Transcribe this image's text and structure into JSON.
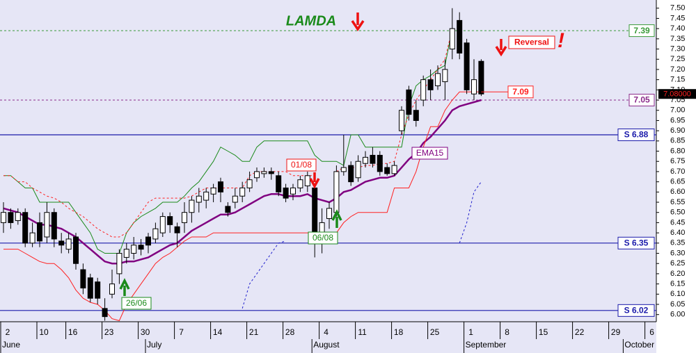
{
  "chart_data": {
    "type": "candlestick",
    "title": "LAMDA",
    "annotations": [
      "Reversal",
      "!",
      "01/08",
      "06/08",
      "26/06"
    ],
    "categories": [
      "2",
      null,
      null,
      null,
      null,
      "10",
      null,
      null,
      null,
      "16",
      null,
      null,
      null,
      null,
      "23",
      null,
      null,
      null,
      null,
      "30",
      null,
      null,
      null,
      null,
      "7",
      null,
      null,
      null,
      null,
      "14",
      null,
      null,
      null,
      null,
      "21",
      null,
      null,
      null,
      null,
      "28",
      null,
      null,
      null,
      null,
      "4",
      null,
      null,
      null,
      null,
      "11",
      null,
      null,
      null,
      null,
      "18",
      null,
      null,
      null,
      null,
      "25",
      null,
      null,
      null,
      null,
      "1",
      null,
      null,
      null,
      null,
      "8",
      null,
      null,
      null,
      null,
      "15",
      null,
      null,
      null,
      null,
      "22",
      null,
      null,
      null,
      null,
      "29",
      null,
      null,
      null,
      null,
      "6"
    ],
    "months": [
      "June",
      null,
      null,
      null,
      null,
      null,
      null,
      null,
      null,
      null,
      null,
      null,
      null,
      null,
      null,
      null,
      null,
      null,
      null,
      null,
      "July",
      null,
      null,
      null,
      null,
      null,
      null,
      null,
      null,
      null,
      null,
      null,
      null,
      null,
      null,
      null,
      null,
      null,
      null,
      null,
      null,
      null,
      null,
      "August",
      null,
      null,
      null,
      null,
      null,
      null,
      null,
      null,
      null,
      null,
      null,
      null,
      null,
      null,
      null,
      null,
      null,
      null,
      null,
      null,
      "September",
      null,
      null,
      null,
      null,
      null,
      null,
      null,
      null,
      null,
      null,
      null,
      null,
      null,
      null,
      null,
      null,
      null,
      null,
      null,
      null,
      null,
      "October",
      null,
      null,
      null
    ],
    "open": [
      6.45,
      6.5,
      6.46,
      6.5,
      6.35,
      6.45,
      6.38,
      6.5,
      6.36,
      6.32,
      6.38,
      6.22,
      6.18,
      6.16,
      6.03,
      6.1,
      6.2,
      6.28,
      6.3,
      6.34,
      6.38,
      6.37,
      6.4,
      6.48,
      6.43,
      6.45,
      6.5,
      6.55,
      6.56,
      6.59,
      6.65,
      6.53,
      6.55,
      6.58,
      6.62,
      6.67,
      6.69,
      6.7,
      6.68,
      6.62,
      6.59,
      6.62,
      6.63,
      6.62,
      6.4,
      6.47,
      6.5,
      6.7,
      6.73,
      6.67,
      6.74,
      6.78,
      6.78,
      6.72,
      6.69,
      6.9,
      7.1,
      7.0,
      7.05,
      7.15,
      7.12,
      7.14,
      7.3,
      7.44,
      7.33,
      7.08,
      7.24,
      null,
      null,
      null,
      null,
      null,
      null,
      null,
      null,
      null,
      null,
      null,
      null,
      null,
      null,
      null,
      null,
      null,
      null,
      null,
      null,
      null,
      null,
      null
    ],
    "high": [
      6.55,
      6.52,
      6.52,
      6.52,
      6.45,
      6.5,
      6.55,
      6.52,
      6.4,
      6.4,
      6.4,
      6.25,
      6.2,
      6.18,
      6.08,
      6.22,
      6.32,
      6.35,
      6.38,
      6.37,
      6.4,
      6.45,
      6.5,
      6.5,
      6.45,
      6.55,
      6.58,
      6.62,
      6.62,
      6.64,
      6.67,
      6.55,
      6.62,
      6.65,
      6.7,
      6.72,
      6.72,
      6.72,
      6.7,
      6.64,
      6.64,
      6.68,
      6.7,
      6.64,
      6.52,
      6.55,
      6.73,
      6.88,
      6.75,
      6.78,
      6.8,
      6.82,
      6.8,
      6.74,
      6.75,
      7.02,
      7.12,
      7.05,
      7.17,
      7.2,
      7.22,
      7.25,
      7.5,
      7.48,
      7.35,
      7.25,
      7.25,
      null,
      null,
      null,
      null,
      null,
      null,
      null,
      null,
      null,
      null,
      null,
      null,
      null,
      null,
      null,
      null,
      null,
      null,
      null,
      null,
      null,
      null,
      null
    ],
    "low": [
      6.4,
      6.42,
      6.44,
      6.33,
      6.33,
      6.33,
      6.35,
      6.33,
      6.3,
      6.3,
      6.22,
      6.1,
      6.06,
      6.05,
      5.97,
      6.08,
      6.15,
      6.25,
      6.27,
      6.29,
      6.3,
      6.35,
      6.38,
      6.4,
      6.33,
      6.4,
      6.45,
      6.5,
      6.52,
      6.55,
      6.55,
      6.48,
      6.52,
      6.55,
      6.6,
      6.65,
      6.67,
      6.66,
      6.58,
      6.55,
      6.56,
      6.6,
      6.6,
      6.28,
      6.3,
      6.42,
      6.48,
      6.68,
      6.63,
      6.65,
      6.72,
      6.72,
      6.68,
      6.68,
      6.68,
      6.88,
      6.95,
      6.92,
      7.02,
      7.05,
      7.1,
      7.05,
      7.25,
      7.25,
      7.08,
      7.05,
      7.07,
      null,
      null,
      null,
      null,
      null,
      null,
      null,
      null,
      null,
      null,
      null,
      null,
      null,
      null,
      null,
      null,
      null,
      null,
      null,
      null,
      null,
      null,
      null
    ],
    "close": [
      6.5,
      6.45,
      6.5,
      6.35,
      6.4,
      6.36,
      6.5,
      6.37,
      6.34,
      6.37,
      6.25,
      6.13,
      6.08,
      6.08,
      5.99,
      6.15,
      6.3,
      6.32,
      6.34,
      6.32,
      6.34,
      6.42,
      6.48,
      6.44,
      6.4,
      6.5,
      6.56,
      6.58,
      6.6,
      6.62,
      6.6,
      6.5,
      6.58,
      6.62,
      6.66,
      6.7,
      6.7,
      6.69,
      6.6,
      6.57,
      6.62,
      6.66,
      6.68,
      6.4,
      6.45,
      6.52,
      6.7,
      6.72,
      6.65,
      6.75,
      6.77,
      6.74,
      6.7,
      6.69,
      6.73,
      7.0,
      6.98,
      6.95,
      7.15,
      7.1,
      7.18,
      7.2,
      7.4,
      7.28,
      7.1,
      7.15,
      7.08,
      null,
      null,
      null,
      null,
      null,
      null,
      null,
      null,
      null,
      null,
      null,
      null,
      null,
      null,
      null,
      null,
      null,
      null,
      null,
      null,
      null,
      null,
      null
    ],
    "up_color": "#ffffff",
    "down_color": "#000000",
    "lines": [
      {
        "name": "EMA15",
        "color": "#800080",
        "width": 2.5,
        "dashed": false,
        "values": [
          6.52,
          6.51,
          6.5,
          6.48,
          6.46,
          6.44,
          6.44,
          6.43,
          6.42,
          6.4,
          6.38,
          6.35,
          6.32,
          6.29,
          6.26,
          6.25,
          6.25,
          6.26,
          6.26,
          6.27,
          6.28,
          6.3,
          6.32,
          6.34,
          6.35,
          6.38,
          6.41,
          6.43,
          6.45,
          6.47,
          6.49,
          6.49,
          6.5,
          6.52,
          6.54,
          6.56,
          6.58,
          6.59,
          6.59,
          6.58,
          6.58,
          6.58,
          6.59,
          6.57,
          6.56,
          6.55,
          6.57,
          6.6,
          6.61,
          6.63,
          6.65,
          6.66,
          6.67,
          6.67,
          6.68,
          6.72,
          6.76,
          6.79,
          6.84,
          6.87,
          6.91,
          6.95,
          7.0,
          7.02,
          7.03,
          7.04,
          7.05,
          null,
          null,
          null,
          null,
          null,
          null,
          null,
          null,
          null,
          null,
          null,
          null,
          null,
          null,
          null,
          null,
          null,
          null,
          null,
          null,
          null,
          null,
          null
        ]
      },
      {
        "color": "#1a8a1a",
        "width": 1,
        "dashed": false,
        "values": [
          6.68,
          6.68,
          6.65,
          6.62,
          6.62,
          6.55,
          6.55,
          6.55,
          6.55,
          6.55,
          6.5,
          6.45,
          6.4,
          6.32,
          6.3,
          6.3,
          6.3,
          6.4,
          6.45,
          6.48,
          6.5,
          6.52,
          6.55,
          6.55,
          6.55,
          6.58,
          6.62,
          6.65,
          6.7,
          6.75,
          6.82,
          6.8,
          6.78,
          6.75,
          6.75,
          6.82,
          6.85,
          6.85,
          6.85,
          6.85,
          6.85,
          6.85,
          6.85,
          6.78,
          6.75,
          6.75,
          6.75,
          6.73,
          6.88,
          6.88,
          6.82,
          6.82,
          6.82,
          6.82,
          6.82,
          6.82,
          7.02,
          7.12,
          7.15,
          7.17,
          7.2,
          7.22,
          7.4,
          null,
          null,
          null,
          null,
          null,
          null,
          null,
          null,
          null,
          null,
          null,
          null,
          null,
          null,
          null,
          null,
          null,
          null,
          null,
          null,
          null,
          null,
          null,
          null,
          null,
          null,
          null
        ]
      },
      {
        "color": "#ff2020",
        "width": 1,
        "dashed": false,
        "values": [
          6.32,
          6.32,
          6.32,
          6.3,
          6.28,
          6.26,
          6.25,
          6.25,
          6.22,
          6.18,
          6.12,
          6.08,
          6.06,
          6.05,
          6.02,
          5.98,
          5.97,
          6.05,
          6.1,
          6.15,
          6.2,
          6.25,
          6.28,
          6.3,
          6.33,
          6.36,
          6.38,
          6.38,
          6.38,
          6.4,
          6.4,
          6.4,
          6.4,
          6.4,
          6.4,
          6.4,
          6.4,
          6.4,
          6.4,
          6.4,
          6.4,
          6.4,
          6.4,
          6.4,
          6.4,
          6.4,
          6.4,
          6.45,
          6.48,
          6.5,
          6.5,
          6.5,
          6.5,
          6.5,
          6.62,
          6.62,
          6.62,
          6.7,
          6.82,
          6.92,
          6.92,
          7.0,
          7.05,
          7.09,
          7.09,
          7.09,
          7.09,
          null,
          null,
          null,
          null,
          null,
          null,
          null,
          null,
          null,
          null,
          null,
          null,
          null,
          null,
          null,
          null,
          null,
          null,
          null,
          null,
          null,
          null,
          null
        ]
      },
      {
        "color": "#ff2020",
        "width": 1,
        "dashed": true,
        "values": [
          6.68,
          6.68,
          6.65,
          6.65,
          6.62,
          6.6,
          6.58,
          6.57,
          6.55,
          6.52,
          6.5,
          6.48,
          6.45,
          6.42,
          6.4,
          6.38,
          6.38,
          6.4,
          6.45,
          6.5,
          6.55,
          6.57,
          6.57,
          6.57,
          6.57,
          6.57,
          6.58,
          6.6,
          6.62,
          6.62,
          6.62,
          6.62,
          6.62,
          6.62,
          6.68,
          6.7,
          6.7,
          6.7,
          6.7,
          6.7,
          6.68,
          6.68,
          6.68,
          6.68,
          null,
          null,
          6.7,
          6.72,
          6.72,
          6.72,
          6.73,
          6.73,
          6.74,
          6.74,
          6.75,
          6.88,
          6.98,
          7.05,
          7.1,
          7.15,
          7.2,
          7.25,
          7.4,
          null,
          null,
          null,
          null,
          null,
          null,
          null,
          null,
          null,
          null,
          null,
          null,
          null,
          null,
          null,
          null,
          null,
          null,
          null,
          null,
          null,
          null,
          null,
          null,
          null,
          null,
          null
        ]
      },
      {
        "color": "#2020cc",
        "width": 1,
        "dashed": true,
        "values": [
          null,
          null,
          null,
          null,
          null,
          null,
          null,
          null,
          null,
          null,
          null,
          null,
          null,
          null,
          null,
          null,
          null,
          null,
          null,
          null,
          null,
          null,
          null,
          null,
          null,
          null,
          null,
          null,
          null,
          null,
          null,
          null,
          null,
          6.03,
          6.15,
          6.2,
          6.25,
          6.3,
          6.35,
          6.36,
          null,
          null,
          null,
          null,
          null,
          null,
          null,
          null,
          null,
          null,
          null,
          null,
          null,
          null,
          null,
          null,
          null,
          null,
          null,
          null,
          null,
          null,
          null,
          6.35,
          6.45,
          6.6,
          6.65,
          null,
          null,
          null,
          null,
          null,
          null,
          null,
          null,
          null,
          null,
          null,
          null,
          null,
          null,
          null,
          null,
          null,
          null,
          null,
          null,
          null,
          null,
          null
        ]
      }
    ],
    "levels": [
      {
        "value": 7.39,
        "color": "#3a9a3a",
        "dashed": true
      },
      {
        "value": 7.05,
        "color": "#8a2a8a",
        "dashed": true
      },
      {
        "value": 6.88,
        "label": "S 6.88",
        "color": "#1a1aaa",
        "dashed": false
      },
      {
        "value": 6.35,
        "label": "S 6.35",
        "color": "#1a1aaa",
        "dashed": false
      },
      {
        "value": 6.02,
        "label": "S 6.02",
        "color": "#1a1aaa",
        "dashed": false
      }
    ],
    "stop_marker": {
      "value": 7.09,
      "color": "#ff2020"
    },
    "last_price": {
      "value": 7.08,
      "label": "7.08000"
    },
    "ylim": [
      5.965,
      7.54
    ],
    "yticks": [
      {
        "value": 6,
        "label": "6.00"
      },
      {
        "value": 6.05,
        "label": "6.05"
      },
      {
        "value": 6.1,
        "label": "6.10"
      },
      {
        "value": 6.15,
        "label": "6.15"
      },
      {
        "value": 6.2,
        "label": "6.20"
      },
      {
        "value": 6.25,
        "label": "6.25"
      },
      {
        "value": 6.3,
        "label": "6.30"
      },
      {
        "value": 6.35,
        "label": "6.35"
      },
      {
        "value": 6.4,
        "label": "6.40"
      },
      {
        "value": 6.45,
        "label": "6.45"
      },
      {
        "value": 6.5,
        "label": "6.50"
      },
      {
        "value": 6.55,
        "label": "6.55"
      },
      {
        "value": 6.6,
        "label": "6.60"
      },
      {
        "value": 6.65,
        "label": "6.65"
      },
      {
        "value": 6.7,
        "label": "6.70"
      },
      {
        "value": 6.75,
        "label": "6.75"
      },
      {
        "value": 6.8,
        "label": "6.80"
      },
      {
        "value": 6.85,
        "label": "6.85"
      },
      {
        "value": 6.9,
        "label": "6.90"
      },
      {
        "value": 6.95,
        "label": "6.95"
      },
      {
        "value": 7,
        "label": "7.00"
      },
      {
        "value": 7.05,
        "label": "7.05"
      },
      {
        "value": 7.1,
        "label": "7.10"
      },
      {
        "value": 7.15,
        "label": "7.15"
      },
      {
        "value": 7.2,
        "label": "7.20"
      },
      {
        "value": 7.25,
        "label": "7.25"
      },
      {
        "value": 7.3,
        "label": "7.30"
      },
      {
        "value": 7.35,
        "label": "7.35"
      },
      {
        "value": 7.4,
        "label": "7.40"
      },
      {
        "value": 7.45,
        "label": "7.45"
      },
      {
        "value": 7.5,
        "label": "7.50"
      }
    ]
  }
}
